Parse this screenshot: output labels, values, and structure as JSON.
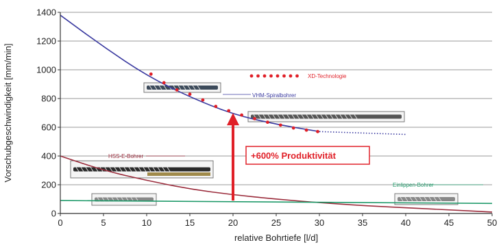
{
  "chart_data": {
    "type": "line",
    "xlabel": "relative Bohrtiefe [l/d]",
    "ylabel": "Vorschubgeschwindigkeit [mm/min]",
    "xlim": [
      0,
      50
    ],
    "ylim": [
      0,
      1400
    ],
    "xticks": [
      "0",
      "5",
      "10",
      "15",
      "20",
      "25",
      "30",
      "35",
      "40",
      "45",
      "50"
    ],
    "yticks": [
      "0",
      "200",
      "400",
      "600",
      "800",
      "1000",
      "1200",
      "1400"
    ],
    "grid": "horizontal",
    "series": [
      {
        "name": "VHM-Spiralbohrer",
        "color": "#3a3aa0",
        "style": "solid",
        "x": [
          0,
          5,
          10,
          15,
          20,
          25,
          30
        ],
        "y": [
          1380,
          1160,
          960,
          810,
          690,
          620,
          570
        ]
      },
      {
        "name": "VHM-Spiralbohrer",
        "color": "#3a3aa0",
        "style": "dotted",
        "x": [
          30,
          40
        ],
        "y": [
          570,
          550
        ]
      },
      {
        "name": "XD-Technologie",
        "color": "#e02028",
        "style": "markers",
        "x": [
          10.5,
          12,
          13.5,
          15,
          16.5,
          18,
          19.5,
          21,
          22.5,
          24,
          25.5,
          27,
          28.5,
          29.8
        ],
        "y": [
          970,
          910,
          860,
          830,
          790,
          745,
          715,
          685,
          660,
          635,
          615,
          595,
          580,
          570
        ]
      },
      {
        "name": "HSS-E-Bohrer",
        "color": "#9a2a3a",
        "style": "solid",
        "x": [
          0,
          5,
          10,
          15,
          20,
          25,
          30,
          35,
          40,
          45,
          50
        ],
        "y": [
          400,
          300,
          230,
          170,
          130,
          100,
          75,
          55,
          40,
          25,
          10
        ]
      },
      {
        "name": "Einlippen-Bohrer",
        "color": "#1f9a6a",
        "style": "solid",
        "x": [
          0,
          50
        ],
        "y": [
          90,
          70
        ]
      }
    ],
    "annotations": [
      {
        "text": "XD-Technologie",
        "color": "#e02028"
      },
      {
        "text": "VHM-Spiralbohrer",
        "color": "#3a3aa0"
      },
      {
        "text": "HSS-E-Bohrer",
        "color": "#9a2a3a"
      },
      {
        "text": "Einlippen-Bohrer",
        "color": "#1f9a6a"
      },
      {
        "text": "+600% Produktivität",
        "color": "#e02028"
      }
    ],
    "arrow": {
      "x": 20,
      "from": 90,
      "to": 690,
      "color": "#e02028"
    }
  }
}
